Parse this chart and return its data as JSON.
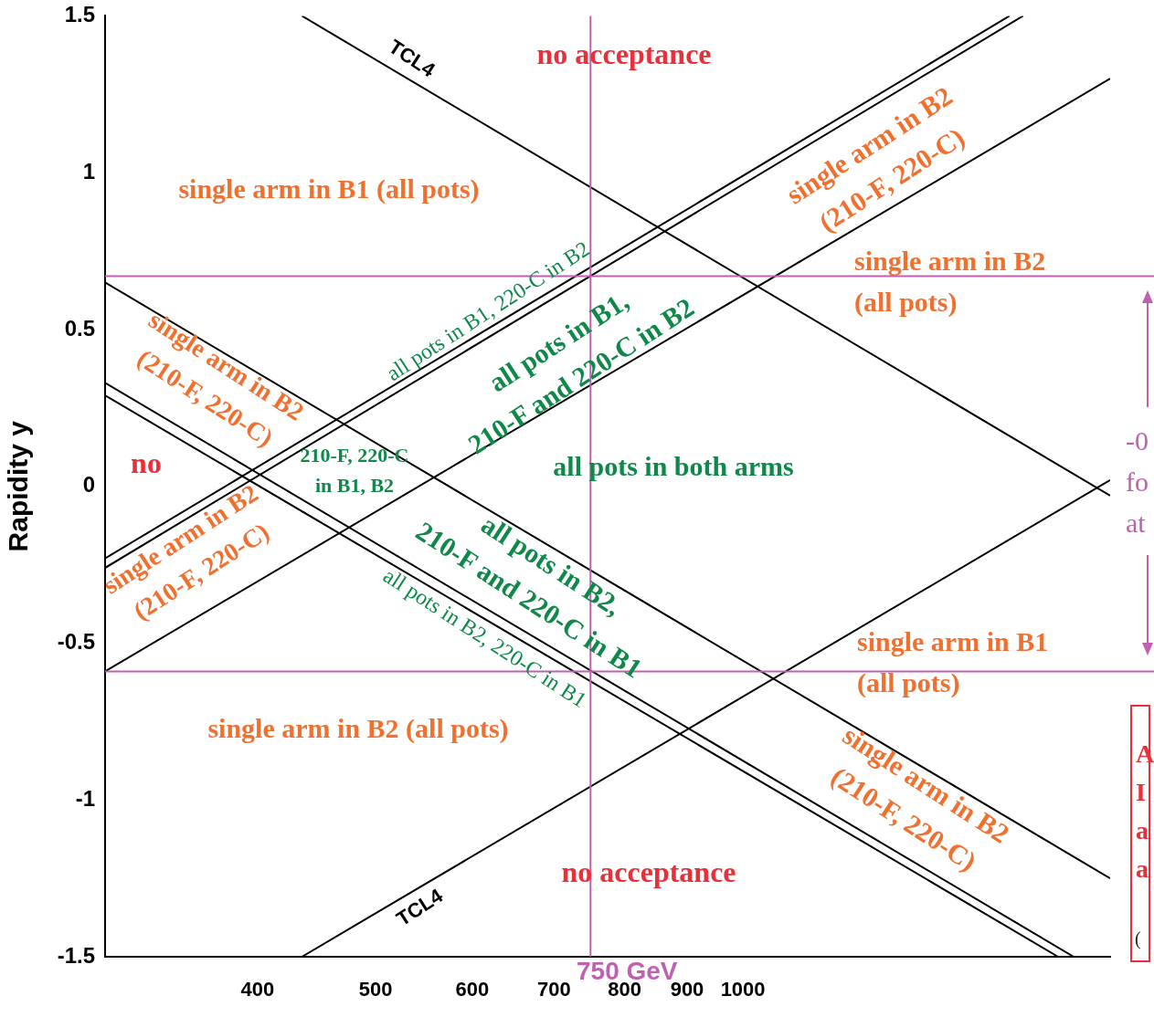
{
  "chart_data": {
    "type": "line",
    "ylabel": "Rapidity y",
    "log": "x",
    "xlim": [
      300,
      2000
    ],
    "xticks": [
      400,
      500,
      600,
      700,
      800,
      900,
      1000
    ],
    "ylim": [
      -1.5,
      1.5
    ],
    "yticks": [
      -1.5,
      -1,
      -0.5,
      0,
      0.5,
      1,
      1.5
    ],
    "grid": false,
    "legend": false,
    "marker": "none",
    "line_style": "solid",
    "series": [
      {
        "color": "#000000",
        "x": [
          435,
          2000
        ],
        "values": [
          1.5,
          -0.03
        ]
      },
      {
        "color": "#000000",
        "x": [
          300,
          2000
        ],
        "values": [
          0.65,
          -1.25
        ]
      },
      {
        "color": "#000000",
        "x": [
          300,
          1867
        ],
        "values": [
          0.33,
          -1.5
        ]
      },
      {
        "color": "#000000",
        "x": [
          300,
          1813
        ],
        "values": [
          0.29,
          -1.5
        ]
      },
      {
        "color": "#000000",
        "x": [
          300,
          1654
        ],
        "values": [
          -0.23,
          1.5
        ]
      },
      {
        "color": "#000000",
        "x": [
          300,
          1697
        ],
        "values": [
          -0.26,
          1.5
        ]
      },
      {
        "color": "#000000",
        "x": [
          300,
          2000
        ],
        "values": [
          -0.59,
          1.3
        ]
      },
      {
        "color": "#000000",
        "x": [
          435,
          2000
        ],
        "values": [
          -1.5,
          0.02
        ]
      }
    ],
    "ref_lines": [
      {
        "axis": "x",
        "value": 750,
        "label": "750 GeV",
        "color": "#c060b0"
      },
      {
        "axis": "y",
        "value": 0.67,
        "color": "#c060b0"
      },
      {
        "axis": "y",
        "value": -0.59,
        "color": "#c060b0"
      }
    ],
    "annotations": [
      "TCL4",
      "no acceptance",
      "single arm in B1 (all pots)",
      "single arm in B2\n(210-F, 220-C)",
      "all pots in B1, 220-C in B2",
      "single arm in B2\n(all pots)",
      "all pots in B1,\n210-F and 220-C in B2",
      "single arm in B2\n(210-F, 220-C)",
      "no",
      "all pots in both arms",
      "210-F, 220-C\nin B1, B2",
      "single arm in B2\n(210-F, 220-C)",
      "all pots in B2,\n210-F and 220-C in B1",
      "all pots in B2, 220-C in B1",
      "single arm in B1\n(all pots)",
      "single arm in B2 (all pots)",
      "single arm in B2\n(210-F, 220-C)",
      "no acceptance",
      "TCL4",
      "-0\nfo\nat",
      "A\nI\na\na",
      "("
    ]
  }
}
